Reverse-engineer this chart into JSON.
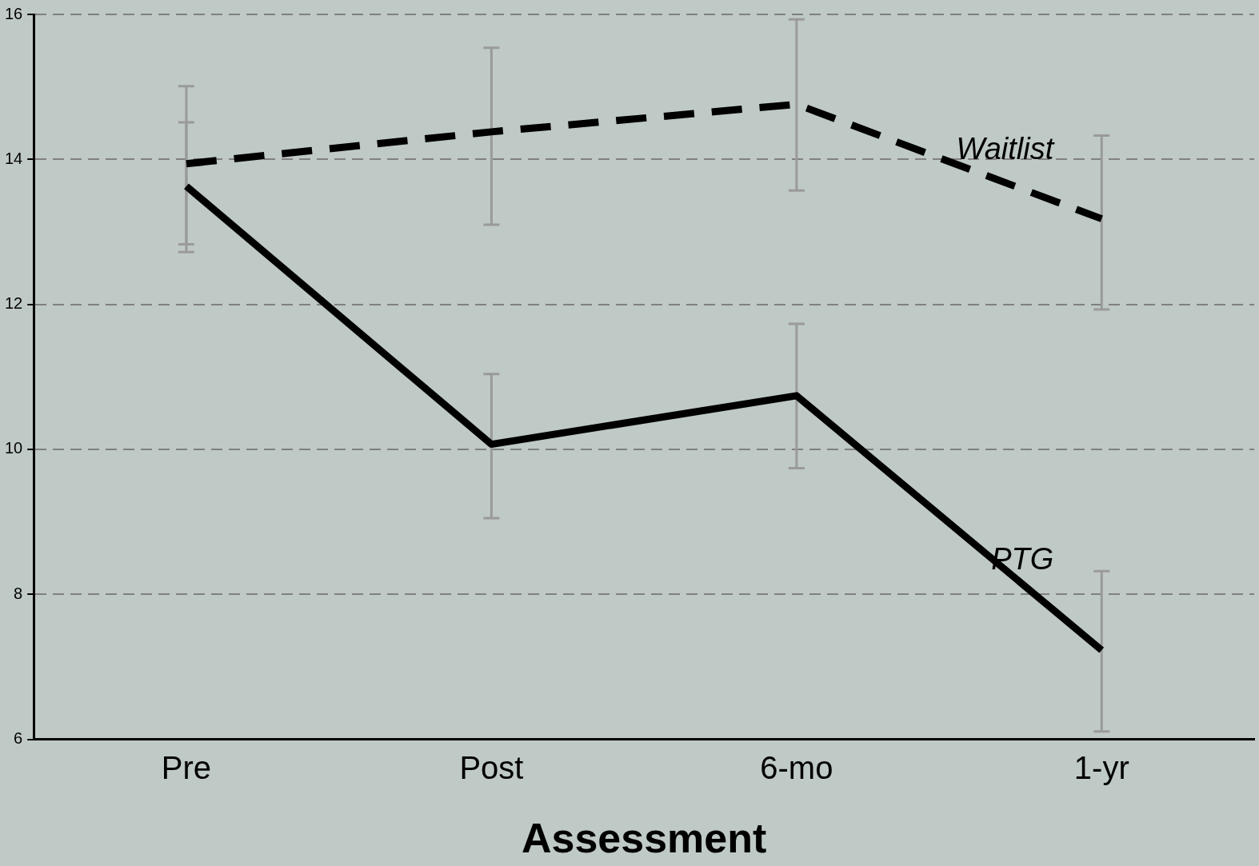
{
  "chart_data": {
    "type": "line",
    "xlabel": "Assessment",
    "categories": [
      "Pre",
      "Post",
      "6-mo",
      "1-yr"
    ],
    "series": [
      {
        "name": "Waitlist",
        "color": "#000000",
        "line_style": "dashed",
        "values": [
          13.94,
          14.38,
          14.76,
          13.18
        ],
        "errors": [
          [
            12.83,
            15.01
          ],
          [
            13.1,
            15.54
          ],
          [
            13.57,
            15.93
          ],
          [
            11.93,
            14.33
          ]
        ]
      },
      {
        "name": "PTG",
        "color": "#000000",
        "line_style": "solid",
        "values": [
          13.63,
          10.07,
          10.74,
          7.23
        ],
        "errors": [
          [
            12.72,
            14.51
          ],
          [
            9.05,
            11.04
          ],
          [
            9.74,
            11.73
          ],
          [
            6.11,
            8.32
          ]
        ]
      }
    ],
    "ylim": [
      6,
      16
    ],
    "yticks": [
      6,
      8,
      10,
      12,
      14,
      16
    ],
    "grid": "y",
    "legend": false,
    "marker": "none"
  }
}
